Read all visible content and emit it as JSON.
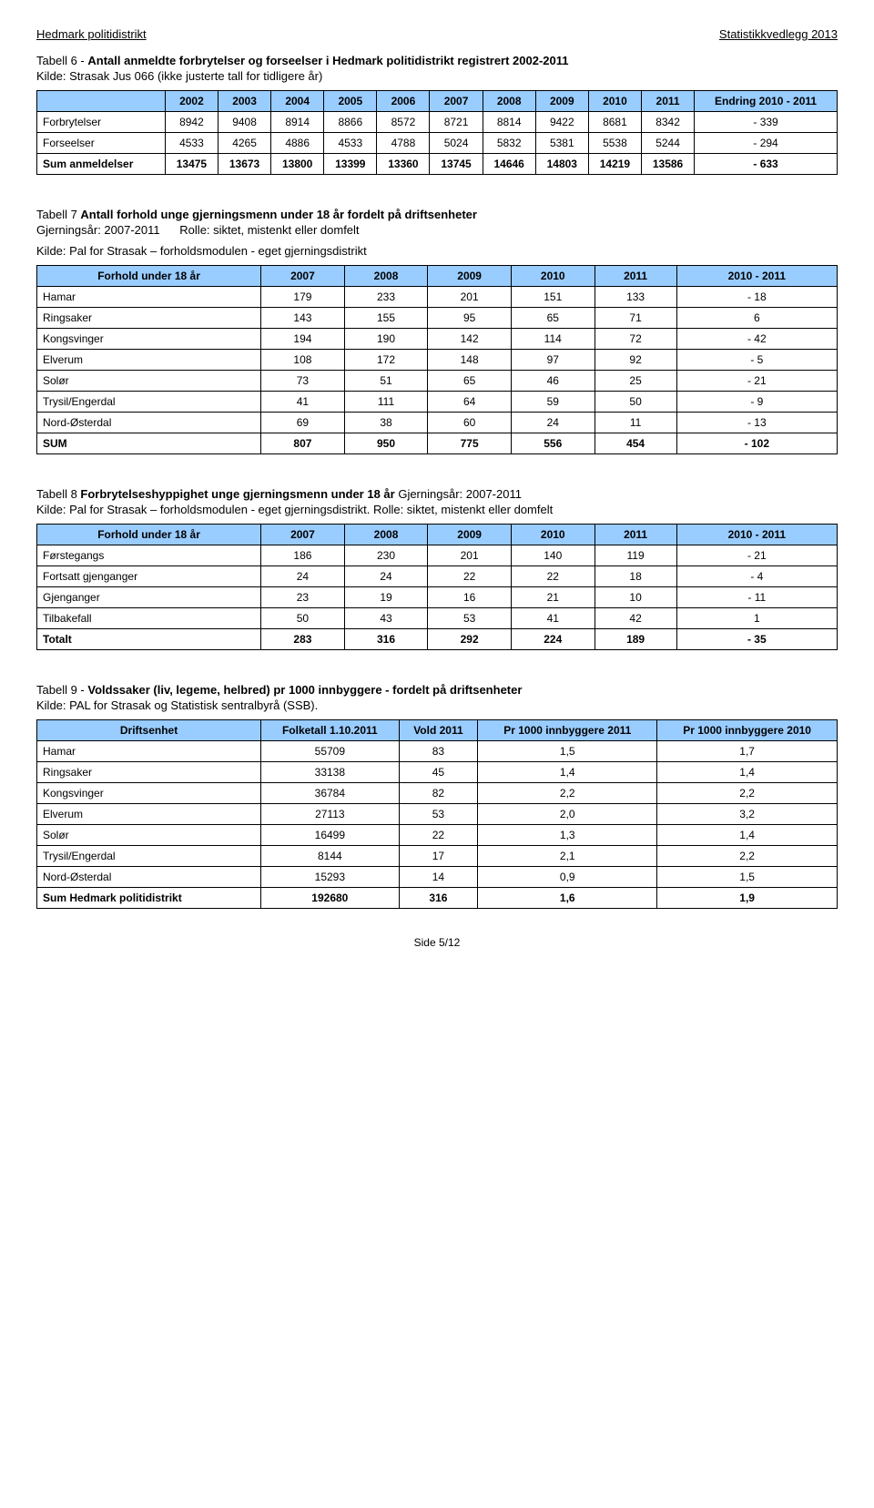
{
  "header": {
    "left": "Hedmark politidistrikt",
    "right": "Statistikkvedlegg 2013"
  },
  "t6": {
    "title_prefix": "Tabell 6 - ",
    "title_bold": "Antall anmeldte forbrytelser og forseelser i Hedmark politidistrikt registrert 2002-2011",
    "sub": "Kilde: Strasak Jus 066 (ikke justerte tall for tidligere år)",
    "header_bg": "#99ccff",
    "years": [
      "2002",
      "2003",
      "2004",
      "2005",
      "2006",
      "2007",
      "2008",
      "2009",
      "2010",
      "2011"
    ],
    "change_label": "Endring 2010 - 2011",
    "rows": [
      {
        "label": "Forbrytelser",
        "vals": [
          "8942",
          "9408",
          "8914",
          "8866",
          "8572",
          "8721",
          "8814",
          "9422",
          "8681",
          "8342",
          "- 339"
        ]
      },
      {
        "label": "Forseelser",
        "vals": [
          "4533",
          "4265",
          "4886",
          "4533",
          "4788",
          "5024",
          "5832",
          "5381",
          "5538",
          "5244",
          "- 294"
        ]
      },
      {
        "label": "Sum anmeldelser",
        "bold": true,
        "vals": [
          "13475",
          "13673",
          "13800",
          "13399",
          "13360",
          "13745",
          "14646",
          "14803",
          "14219",
          "13586",
          "- 633"
        ]
      }
    ]
  },
  "t7": {
    "title_prefix": "Tabell 7 ",
    "title_bold1": "Antall forhold unge gjerningsmenn under 18 år fordelt på driftsenheter",
    "line2_a": "Gjerningsår: 2007-2011",
    "line2_b": "Rolle: siktet, mistenkt eller domfelt",
    "sub": "Kilde: Pal for Strasak – forholdsmodulen - eget gjerningsdistrikt",
    "col1": "Forhold under 18 år",
    "years": [
      "2007",
      "2008",
      "2009",
      "2010",
      "2011"
    ],
    "change_label": "2010 - 2011",
    "rows": [
      {
        "label": "Hamar",
        "vals": [
          "179",
          "233",
          "201",
          "151",
          "133",
          "- 18"
        ]
      },
      {
        "label": "Ringsaker",
        "vals": [
          "143",
          "155",
          "95",
          "65",
          "71",
          "6"
        ]
      },
      {
        "label": "Kongsvinger",
        "vals": [
          "194",
          "190",
          "142",
          "114",
          "72",
          "- 42"
        ]
      },
      {
        "label": "Elverum",
        "vals": [
          "108",
          "172",
          "148",
          "97",
          "92",
          "- 5"
        ]
      },
      {
        "label": "Solør",
        "vals": [
          "73",
          "51",
          "65",
          "46",
          "25",
          "- 21"
        ]
      },
      {
        "label": "Trysil/Engerdal",
        "vals": [
          "41",
          "111",
          "64",
          "59",
          "50",
          "- 9"
        ]
      },
      {
        "label": "Nord-Østerdal",
        "vals": [
          "69",
          "38",
          "60",
          "24",
          "11",
          "- 13"
        ]
      },
      {
        "label": "SUM",
        "bold": true,
        "vals": [
          "807",
          "950",
          "775",
          "556",
          "454",
          "- 102"
        ]
      }
    ]
  },
  "t8": {
    "title_prefix": "Tabell 8 ",
    "title_bold": "Forbrytelseshyppighet unge gjerningsmenn under 18 år",
    "title_tail": "  Gjerningsår: 2007-2011",
    "sub": "Kilde: Pal for Strasak – forholdsmodulen - eget gjerningsdistrikt.   Rolle: siktet, mistenkt eller domfelt",
    "col1": "Forhold under 18 år",
    "years": [
      "2007",
      "2008",
      "2009",
      "2010",
      "2011"
    ],
    "change_label": "2010 - 2011",
    "rows": [
      {
        "label": "Førstegangs",
        "vals": [
          "186",
          "230",
          "201",
          "140",
          "119",
          "- 21"
        ]
      },
      {
        "label": "Fortsatt gjenganger",
        "vals": [
          "24",
          "24",
          "22",
          "22",
          "18",
          "- 4"
        ]
      },
      {
        "label": "Gjenganger",
        "vals": [
          "23",
          "19",
          "16",
          "21",
          "10",
          "- 11"
        ]
      },
      {
        "label": "Tilbakefall",
        "vals": [
          "50",
          "43",
          "53",
          "41",
          "42",
          "1"
        ]
      },
      {
        "label": "Totalt",
        "bold": true,
        "vals": [
          "283",
          "316",
          "292",
          "224",
          "189",
          "- 35"
        ]
      }
    ]
  },
  "t9": {
    "title_prefix": "Tabell 9 - ",
    "title_bold": "Voldssaker (liv, legeme, helbred) pr 1000 innbyggere - fordelt på driftsenheter",
    "sub": "Kilde: PAL for Strasak og Statistisk sentralbyrå (SSB).",
    "headers": [
      "Driftsenhet",
      "Folketall 1.10.2011",
      "Vold  2011",
      "Pr 1000 innbyggere 2011",
      "Pr 1000 innbyggere 2010"
    ],
    "rows": [
      {
        "label": "Hamar",
        "vals": [
          "55709",
          "83",
          "1,5",
          "1,7"
        ]
      },
      {
        "label": "Ringsaker",
        "vals": [
          "33138",
          "45",
          "1,4",
          "1,4"
        ]
      },
      {
        "label": "Kongsvinger",
        "vals": [
          "36784",
          "82",
          "2,2",
          "2,2"
        ]
      },
      {
        "label": "Elverum",
        "vals": [
          "27113",
          "53",
          "2,0",
          "3,2"
        ]
      },
      {
        "label": "Solør",
        "vals": [
          "16499",
          "22",
          "1,3",
          "1,4"
        ]
      },
      {
        "label": "Trysil/Engerdal",
        "vals": [
          "8144",
          "17",
          "2,1",
          "2,2"
        ]
      },
      {
        "label": "Nord-Østerdal",
        "vals": [
          "15293",
          "14",
          "0,9",
          "1,5"
        ]
      },
      {
        "label": "Sum Hedmark politidistrikt",
        "bold": true,
        "vals": [
          "192680",
          "316",
          "1,6",
          "1,9"
        ]
      }
    ]
  },
  "footer": "Side 5/12"
}
